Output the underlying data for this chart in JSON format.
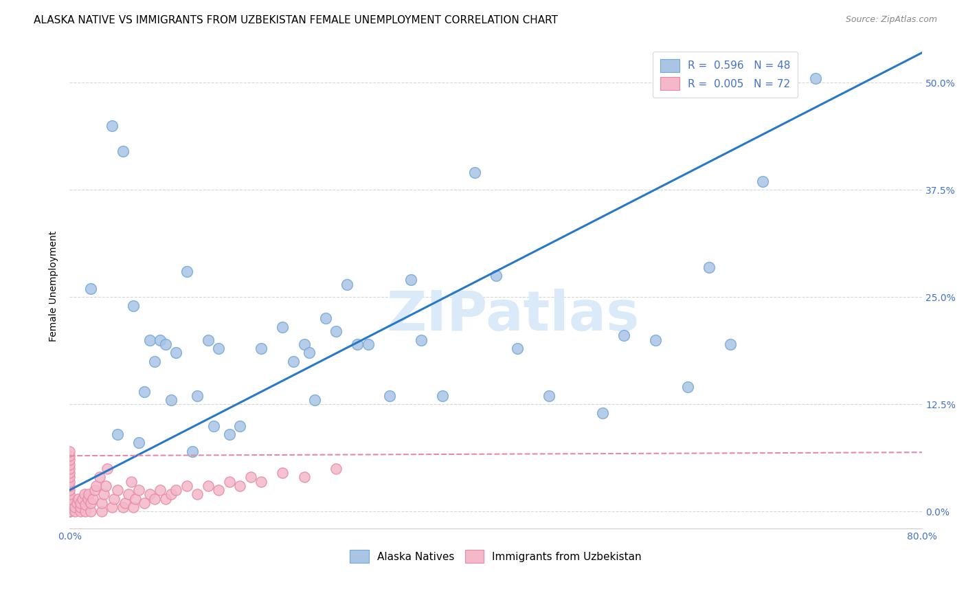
{
  "title": "ALASKA NATIVE VS IMMIGRANTS FROM UZBEKISTAN FEMALE UNEMPLOYMENT CORRELATION CHART",
  "source": "Source: ZipAtlas.com",
  "ylabel": "Female Unemployment",
  "ytick_labels": [
    "0.0%",
    "12.5%",
    "25.0%",
    "37.5%",
    "50.0%"
  ],
  "ytick_values": [
    0.0,
    0.125,
    0.25,
    0.375,
    0.5
  ],
  "xtick_values": [
    0.0,
    0.1,
    0.2,
    0.3,
    0.4,
    0.5,
    0.6,
    0.7,
    0.8
  ],
  "xlim": [
    0.0,
    0.8
  ],
  "ylim": [
    -0.02,
    0.545
  ],
  "legend_color1": "#aac4e6",
  "legend_color2": "#f4b8c8",
  "dot_color_blue": "#aac4e6",
  "dot_color_pink": "#f4b8c8",
  "dot_edge_blue": "#6fa8d8",
  "dot_edge_pink": "#e888a8",
  "trend_color_blue": "#2878c8",
  "trend_color_pink": "#e888a8",
  "watermark": "ZIPatlas",
  "watermark_color": "#daeaf8",
  "background_color": "#ffffff",
  "grid_color": "#cccccc",
  "axis_text_color": "#4472c4",
  "title_fontsize": 11,
  "source_fontsize": 9,
  "legend_fontsize": 11,
  "ylabel_fontsize": 10,
  "tick_fontsize": 10,
  "alaska_x": [
    0.02,
    0.04,
    0.045,
    0.05,
    0.06,
    0.065,
    0.07,
    0.075,
    0.08,
    0.085,
    0.09,
    0.095,
    0.1,
    0.11,
    0.115,
    0.12,
    0.13,
    0.135,
    0.14,
    0.15,
    0.16,
    0.18,
    0.2,
    0.21,
    0.22,
    0.225,
    0.23,
    0.24,
    0.25,
    0.26,
    0.27,
    0.28,
    0.3,
    0.32,
    0.33,
    0.35,
    0.38,
    0.4,
    0.42,
    0.45,
    0.5,
    0.52,
    0.55,
    0.58,
    0.6,
    0.62,
    0.65,
    0.7
  ],
  "alaska_y": [
    0.26,
    0.45,
    0.09,
    0.42,
    0.24,
    0.08,
    0.14,
    0.2,
    0.175,
    0.2,
    0.195,
    0.13,
    0.185,
    0.28,
    0.07,
    0.135,
    0.2,
    0.1,
    0.19,
    0.09,
    0.1,
    0.19,
    0.215,
    0.175,
    0.195,
    0.185,
    0.13,
    0.225,
    0.21,
    0.265,
    0.195,
    0.195,
    0.135,
    0.27,
    0.2,
    0.135,
    0.395,
    0.275,
    0.19,
    0.135,
    0.115,
    0.205,
    0.2,
    0.145,
    0.285,
    0.195,
    0.385,
    0.505
  ],
  "uzbek_x": [
    0.0,
    0.0,
    0.0,
    0.0,
    0.0,
    0.0,
    0.0,
    0.0,
    0.0,
    0.0,
    0.0,
    0.0,
    0.0,
    0.0,
    0.0,
    0.0,
    0.0,
    0.0,
    0.0,
    0.0,
    0.005,
    0.005,
    0.007,
    0.008,
    0.01,
    0.01,
    0.01,
    0.012,
    0.014,
    0.015,
    0.015,
    0.017,
    0.018,
    0.02,
    0.02,
    0.022,
    0.024,
    0.025,
    0.028,
    0.03,
    0.03,
    0.032,
    0.034,
    0.035,
    0.04,
    0.042,
    0.045,
    0.05,
    0.052,
    0.055,
    0.058,
    0.06,
    0.062,
    0.065,
    0.07,
    0.075,
    0.08,
    0.085,
    0.09,
    0.095,
    0.1,
    0.11,
    0.12,
    0.13,
    0.14,
    0.15,
    0.16,
    0.17,
    0.18,
    0.2,
    0.22,
    0.25
  ],
  "uzbek_y": [
    0.0,
    0.0,
    0.0,
    0.0,
    0.0,
    0.005,
    0.008,
    0.01,
    0.015,
    0.02,
    0.025,
    0.03,
    0.035,
    0.04,
    0.045,
    0.05,
    0.055,
    0.06,
    0.065,
    0.07,
    0.0,
    0.005,
    0.01,
    0.015,
    0.0,
    0.005,
    0.01,
    0.015,
    0.02,
    0.0,
    0.008,
    0.015,
    0.02,
    0.0,
    0.01,
    0.015,
    0.025,
    0.03,
    0.04,
    0.0,
    0.01,
    0.02,
    0.03,
    0.05,
    0.005,
    0.015,
    0.025,
    0.005,
    0.01,
    0.02,
    0.035,
    0.005,
    0.015,
    0.025,
    0.01,
    0.02,
    0.015,
    0.025,
    0.015,
    0.02,
    0.025,
    0.03,
    0.02,
    0.03,
    0.025,
    0.035,
    0.03,
    0.04,
    0.035,
    0.045,
    0.04,
    0.05
  ],
  "blue_trend_x": [
    0.0,
    0.8
  ],
  "blue_trend_y": [
    0.025,
    0.535
  ],
  "pink_trend_x": [
    0.0,
    0.8
  ],
  "pink_trend_y": [
    0.065,
    0.069
  ]
}
